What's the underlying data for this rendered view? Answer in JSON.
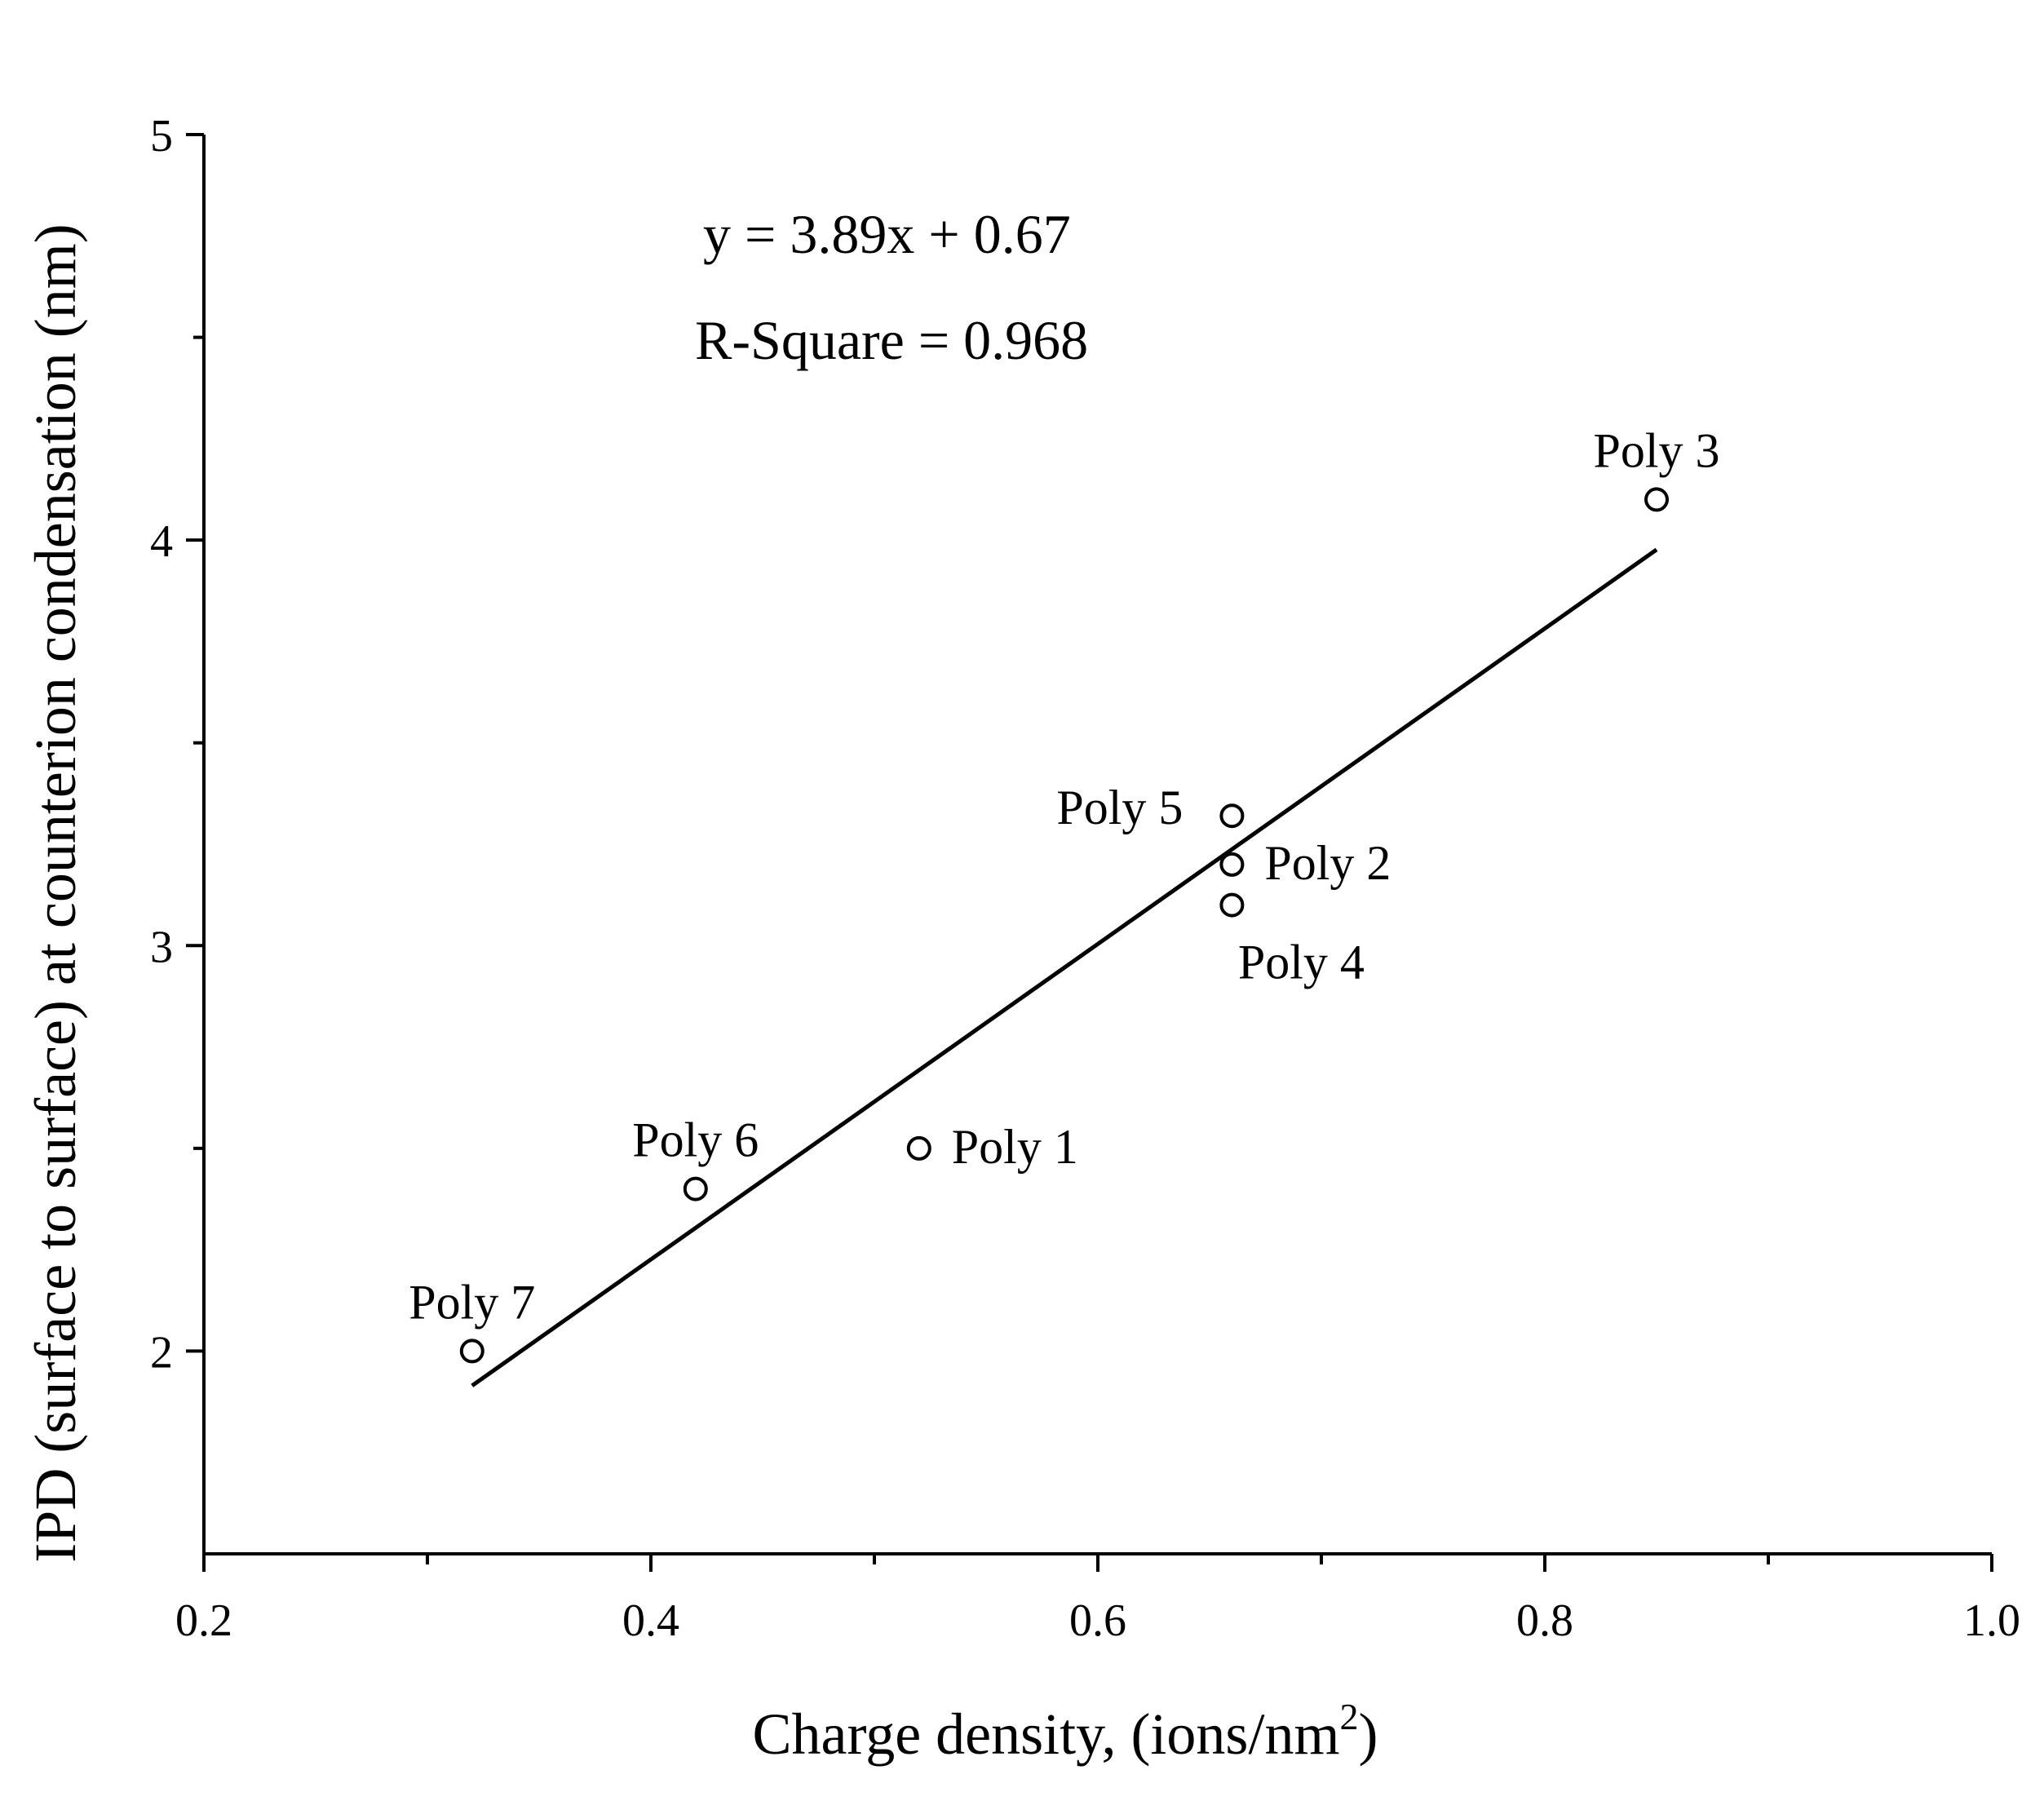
{
  "chart_data": {
    "type": "scatter",
    "xlabel": "Charge density, (ions/nm",
    "xlabel_sup": "2",
    "xlabel_end": ")",
    "ylabel": "IPD (surface to surface) at counterion condensation (nm)",
    "xlim": [
      0.2,
      1.0
    ],
    "ylim": [
      1.5,
      5.0
    ],
    "x_ticks": [
      0.2,
      0.4,
      0.6,
      0.8,
      1.0
    ],
    "x_tick_labels": [
      "0.2",
      "0.4",
      "0.6",
      "0.8",
      "1.0"
    ],
    "x_minor_ticks": [
      0.3,
      0.5,
      0.7,
      0.9
    ],
    "y_ticks": [
      2,
      3,
      4,
      5
    ],
    "y_tick_labels": [
      "2",
      "3",
      "4",
      "5"
    ],
    "y_minor_ticks": [
      2.5,
      3.5,
      4.5
    ],
    "grid": false,
    "legend": "none",
    "points": [
      {
        "name": "Poly 7",
        "x": 0.32,
        "y": 2.0,
        "label_pos": "top"
      },
      {
        "name": "Poly 6",
        "x": 0.42,
        "y": 2.4,
        "label_pos": "top"
      },
      {
        "name": "Poly 1",
        "x": 0.52,
        "y": 2.5,
        "label_pos": "right"
      },
      {
        "name": "Poly 5",
        "x": 0.66,
        "y": 3.32,
        "label_pos": "left"
      },
      {
        "name": "Poly 2",
        "x": 0.66,
        "y": 3.2,
        "label_pos": "right"
      },
      {
        "name": "Poly 4",
        "x": 0.66,
        "y": 3.1,
        "label_pos": "bottom"
      },
      {
        "name": "Poly 3",
        "x": 0.85,
        "y": 4.1,
        "label_pos": "top"
      }
    ],
    "fit": {
      "slope": 3.89,
      "intercept": 0.67,
      "x_range": [
        0.32,
        0.85
      ]
    },
    "annotations": [
      "y = 3.89x + 0.67",
      "R-Square = 0.968"
    ],
    "colors": {
      "marker": "#000000",
      "line": "#000000",
      "background": "#ffffff"
    }
  }
}
